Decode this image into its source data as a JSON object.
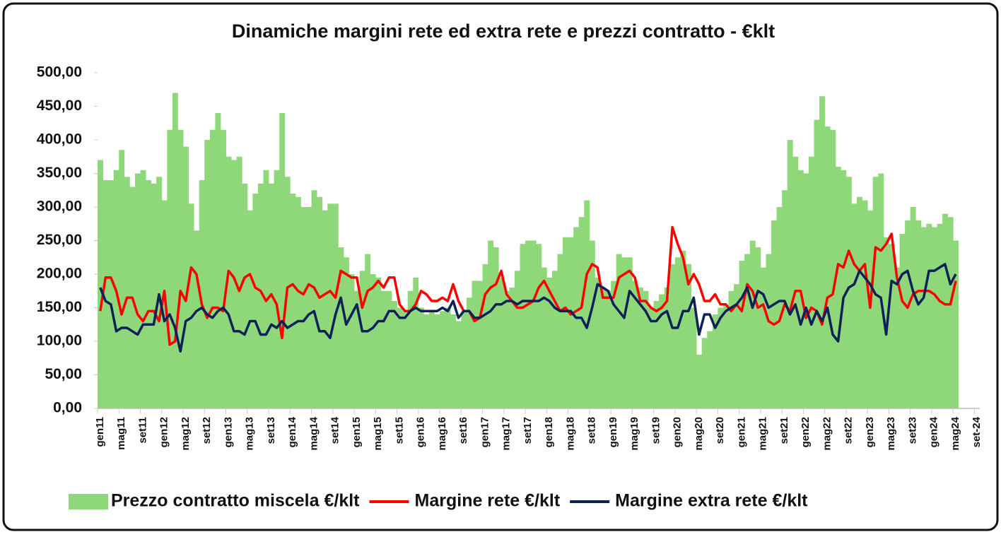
{
  "chart_data": {
    "type": "bar",
    "title": "Dinamiche margini rete ed extra rete e prezzi contratto - €klt",
    "categories": [
      "gen11",
      null,
      null,
      null,
      "mag11",
      null,
      null,
      null,
      "set11",
      null,
      null,
      null,
      "gen12",
      null,
      null,
      null,
      "mag12",
      null,
      null,
      null,
      "set12",
      null,
      null,
      null,
      "gen13",
      null,
      null,
      null,
      "mag13",
      null,
      null,
      null,
      "set13",
      null,
      null,
      null,
      "gen14",
      null,
      null,
      null,
      "mag14",
      null,
      null,
      null,
      "set14",
      null,
      null,
      null,
      "gen15",
      null,
      null,
      null,
      "mag15",
      null,
      null,
      null,
      "set15",
      null,
      null,
      null,
      "gen16",
      null,
      null,
      null,
      "mag16",
      null,
      null,
      null,
      "set16",
      null,
      null,
      null,
      "gen17",
      null,
      null,
      null,
      "mag17",
      null,
      null,
      null,
      "set17",
      null,
      null,
      null,
      "gen18",
      null,
      null,
      null,
      "mag18",
      null,
      null,
      null,
      "set18",
      null,
      null,
      null,
      "gen19",
      null,
      null,
      null,
      "mag19",
      null,
      null,
      null,
      "set19",
      null,
      null,
      null,
      "gen20",
      null,
      null,
      null,
      "mag20",
      null,
      null,
      null,
      "set20",
      null,
      null,
      null,
      "gen21",
      null,
      null,
      null,
      "mag21",
      null,
      null,
      null,
      "set21",
      null,
      null,
      null,
      "gen22",
      null,
      null,
      null,
      "mag22",
      null,
      null,
      null,
      "set22",
      null,
      null,
      null,
      "gen23",
      null,
      null,
      null,
      "mag23",
      null,
      null,
      null,
      "set23",
      null,
      null,
      null,
      "gen24",
      null,
      null,
      null,
      "mag24",
      null,
      null,
      null,
      "set-24"
    ],
    "series": [
      {
        "name": "Prezzo contratto miscela €/klt",
        "type": "bar",
        "color": "#8fd87a",
        "values": [
          370,
          340,
          340,
          355,
          385,
          345,
          330,
          350,
          355,
          340,
          335,
          345,
          310,
          415,
          470,
          415,
          390,
          305,
          265,
          340,
          400,
          415,
          440,
          415,
          375,
          370,
          375,
          335,
          295,
          320,
          335,
          355,
          335,
          355,
          440,
          345,
          320,
          315,
          300,
          300,
          325,
          315,
          295,
          305,
          305,
          240,
          225,
          200,
          175,
          205,
          230,
          200,
          195,
          175,
          175,
          160,
          150,
          145,
          175,
          195,
          150,
          140,
          145,
          140,
          145,
          150,
          140,
          130,
          145,
          165,
          190,
          190,
          215,
          250,
          240,
          195,
          175,
          180,
          205,
          245,
          250,
          250,
          245,
          210,
          195,
          205,
          230,
          255,
          255,
          270,
          285,
          310,
          250,
          195,
          180,
          175,
          190,
          230,
          225,
          225,
          190,
          180,
          175,
          150,
          160,
          170,
          180,
          215,
          225,
          235,
          215,
          150,
          80,
          105,
          115,
          140,
          150,
          155,
          175,
          185,
          220,
          230,
          250,
          240,
          210,
          230,
          280,
          300,
          325,
          400,
          375,
          355,
          350,
          375,
          430,
          465,
          420,
          415,
          360,
          355,
          345,
          305,
          315,
          310,
          295,
          345,
          350,
          255,
          245,
          210,
          260,
          280,
          300,
          280,
          270,
          275,
          270,
          275,
          290,
          285,
          250,
          null,
          null,
          null,
          null
        ]
      },
      {
        "name": "Margine rete €/klt",
        "type": "line",
        "color": "#ff0000",
        "values": [
          145,
          195,
          195,
          175,
          140,
          165,
          165,
          140,
          130,
          145,
          145,
          130,
          175,
          95,
          100,
          175,
          160,
          210,
          200,
          155,
          135,
          150,
          150,
          145,
          205,
          195,
          175,
          195,
          200,
          180,
          175,
          160,
          170,
          155,
          105,
          180,
          185,
          175,
          170,
          185,
          180,
          165,
          170,
          175,
          165,
          205,
          200,
          195,
          195,
          150,
          175,
          180,
          190,
          180,
          195,
          195,
          155,
          145,
          145,
          155,
          175,
          170,
          160,
          160,
          165,
          160,
          185,
          160,
          145,
          145,
          130,
          135,
          170,
          180,
          185,
          205,
          170,
          160,
          150,
          150,
          155,
          160,
          180,
          190,
          175,
          160,
          145,
          150,
          140,
          145,
          150,
          200,
          215,
          210,
          165,
          165,
          165,
          195,
          200,
          205,
          195,
          160,
          160,
          150,
          145,
          150,
          160,
          270,
          245,
          225,
          185,
          200,
          185,
          160,
          160,
          170,
          155,
          155,
          145,
          155,
          145,
          185,
          175,
          150,
          155,
          130,
          125,
          130,
          155,
          145,
          175,
          175,
          135,
          150,
          145,
          125,
          165,
          170,
          215,
          210,
          235,
          215,
          205,
          215,
          150,
          240,
          235,
          245,
          260,
          195,
          160,
          150,
          170,
          175,
          175,
          175,
          170,
          160,
          155,
          155,
          190,
          null,
          null,
          null,
          null
        ]
      },
      {
        "name": "Margine extra rete €/klt",
        "type": "line",
        "color": "#0d2159",
        "values": [
          180,
          160,
          155,
          115,
          120,
          120,
          115,
          110,
          125,
          125,
          125,
          170,
          130,
          140,
          120,
          85,
          130,
          135,
          145,
          150,
          140,
          135,
          145,
          150,
          140,
          115,
          115,
          110,
          130,
          130,
          110,
          110,
          125,
          120,
          130,
          120,
          125,
          130,
          130,
          140,
          145,
          115,
          115,
          105,
          140,
          165,
          125,
          140,
          155,
          115,
          115,
          120,
          130,
          130,
          145,
          145,
          135,
          135,
          145,
          150,
          145,
          145,
          145,
          145,
          150,
          145,
          160,
          135,
          145,
          145,
          135,
          135,
          140,
          145,
          155,
          155,
          160,
          160,
          155,
          160,
          160,
          160,
          160,
          165,
          160,
          150,
          145,
          145,
          145,
          135,
          135,
          120,
          150,
          185,
          180,
          175,
          155,
          145,
          135,
          175,
          165,
          155,
          145,
          130,
          130,
          140,
          145,
          120,
          120,
          145,
          145,
          165,
          110,
          140,
          140,
          120,
          135,
          145,
          150,
          155,
          165,
          180,
          150,
          175,
          170,
          150,
          155,
          160,
          160,
          140,
          155,
          125,
          150,
          125,
          145,
          130,
          150,
          110,
          100,
          165,
          180,
          185,
          205,
          195,
          185,
          170,
          165,
          110,
          190,
          185,
          200,
          205,
          175,
          155,
          165,
          205,
          205,
          210,
          215,
          185,
          200,
          null,
          null,
          null,
          null
        ]
      }
    ],
    "ylim": [
      0,
      500
    ],
    "yticks": [
      {
        "value": 0,
        "label": "0,00"
      },
      {
        "value": 50,
        "label": "50,00"
      },
      {
        "value": 100,
        "label": "100,00"
      },
      {
        "value": 150,
        "label": "150,00"
      },
      {
        "value": 200,
        "label": "200,00"
      },
      {
        "value": 250,
        "label": "250,00"
      },
      {
        "value": 300,
        "label": "300,00"
      },
      {
        "value": 350,
        "label": "350,00"
      },
      {
        "value": 400,
        "label": "400,00"
      },
      {
        "value": 450,
        "label": "450,00"
      },
      {
        "value": 500,
        "label": "500,00"
      }
    ],
    "grid": false
  }
}
